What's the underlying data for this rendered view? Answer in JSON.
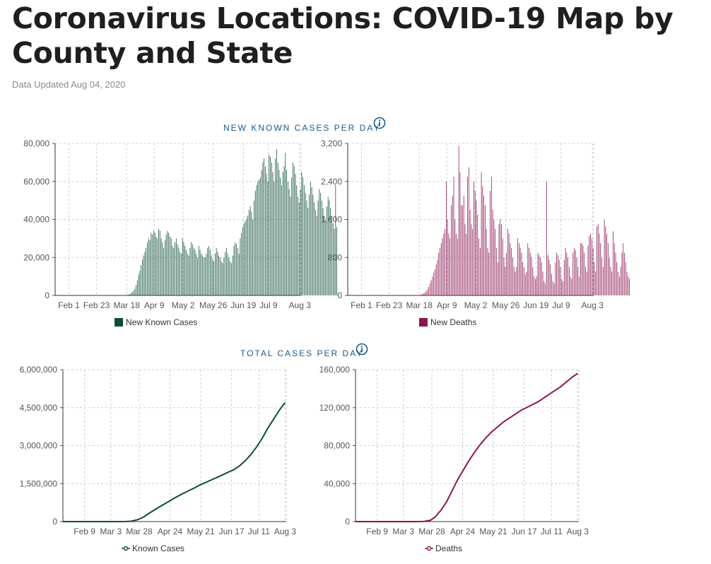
{
  "page": {
    "title": "Coronavirus Locations: COVID-19 Map by County and State",
    "updated": "Data Updated Aug 04, 2020"
  },
  "sections": {
    "new_title": "NEW KNOWN CASES PER DAY",
    "total_title": "TOTAL CASES PER DAY"
  },
  "colors": {
    "cases": "#0d4d3a",
    "deaths": "#8a1552",
    "title_blue": "#1a5a8c",
    "grid": "#cfcfcf"
  },
  "chart_data": [
    {
      "id": "new-cases",
      "type": "bar",
      "title": "NEW KNOWN CASES PER DAY",
      "legend": "New Known Cases",
      "color": "#0d4d3a",
      "x_start": "Jan 21",
      "x_end": "Aug 4",
      "xlim_days": [
        0,
        196
      ],
      "ylim": [
        0,
        80000
      ],
      "y_ticks": [
        0,
        20000,
        40000,
        60000,
        80000
      ],
      "y_tick_labels": [
        "0",
        "20,000",
        "40,000",
        "60,000",
        "80,000"
      ],
      "x_ticks": [
        {
          "label": "Feb 1",
          "day": 11
        },
        {
          "label": "Feb 23",
          "day": 33
        },
        {
          "label": "Mar 18",
          "day": 57
        },
        {
          "label": "Apr 9",
          "day": 79
        },
        {
          "label": "May 2",
          "day": 102
        },
        {
          "label": "May 26",
          "day": 126
        },
        {
          "label": "Jun 19",
          "day": 150
        },
        {
          "label": "Jul 9",
          "day": 170
        },
        {
          "label": "Aug 3",
          "day": 195
        }
      ],
      "daily_start_day": 39,
      "daily_values": [
        0,
        0,
        0,
        0,
        0,
        0,
        0,
        0,
        0,
        0,
        0,
        0,
        0,
        0,
        0,
        0,
        100,
        150,
        300,
        500,
        700,
        1200,
        1800,
        2500,
        3500,
        5500,
        8000,
        11000,
        13000,
        16000,
        19000,
        21000,
        23000,
        25000,
        28000,
        30000,
        29000,
        33000,
        32000,
        34000,
        33000,
        31000,
        30000,
        35000,
        34000,
        30000,
        28000,
        25000,
        29000,
        32000,
        34000,
        33000,
        31000,
        30000,
        26000,
        25000,
        28000,
        30000,
        27000,
        25000,
        23000,
        22000,
        30000,
        28000,
        26000,
        24000,
        22000,
        21000,
        25000,
        28000,
        27000,
        25000,
        24000,
        22000,
        20000,
        26000,
        24000,
        22000,
        21000,
        20000,
        20000,
        22000,
        25000,
        26000,
        24000,
        21000,
        19000,
        18000,
        22000,
        25000,
        23000,
        21000,
        20000,
        18000,
        17000,
        20000,
        23000,
        25000,
        22000,
        20000,
        18000,
        17000,
        21000,
        26000,
        28000,
        27000,
        25000,
        22000,
        30000,
        33000,
        36000,
        38000,
        39000,
        40000,
        42000,
        45000,
        47000,
        44000,
        40000,
        50000,
        55000,
        58000,
        60000,
        61000,
        62000,
        66000,
        70000,
        72000,
        68000,
        64000,
        60000,
        74000,
        73000,
        70000,
        65000,
        60000,
        72000,
        77000,
        70000,
        66000,
        62000,
        58000,
        65000,
        68000,
        75000,
        66000,
        60000,
        56000,
        52000,
        62000,
        70000,
        68000,
        64000,
        58000,
        52000,
        49000,
        56000,
        65000,
        62000,
        58000,
        54000,
        50000,
        46000,
        53000,
        60000,
        57000,
        53000,
        49000,
        45000,
        42000,
        50000,
        56000,
        54000,
        50000,
        46000,
        42000,
        40000,
        47000,
        52000,
        50000,
        46000,
        42000,
        38000,
        35000,
        58000,
        36000
      ]
    },
    {
      "id": "new-deaths",
      "type": "bar",
      "title": "NEW KNOWN CASES PER DAY",
      "legend": "New Deaths",
      "color": "#8a1552",
      "x_start": "Jan 21",
      "x_end": "Aug 4",
      "xlim_days": [
        0,
        196
      ],
      "ylim": [
        0,
        3200
      ],
      "y_ticks": [
        0,
        800,
        1600,
        2400,
        3200
      ],
      "y_tick_labels": [
        "0",
        "800",
        "1,600",
        "2,400",
        "3,200"
      ],
      "x_ticks": [
        {
          "label": "Feb 1",
          "day": 11
        },
        {
          "label": "Feb 23",
          "day": 33
        },
        {
          "label": "Mar 18",
          "day": 57
        },
        {
          "label": "Apr 9",
          "day": 79
        },
        {
          "label": "May 2",
          "day": 102
        },
        {
          "label": "May 26",
          "day": 126
        },
        {
          "label": "Jun 19",
          "day": 150
        },
        {
          "label": "Jul 9",
          "day": 170
        },
        {
          "label": "Aug 3",
          "day": 195
        }
      ],
      "daily_start_day": 39,
      "daily_values": [
        0,
        0,
        0,
        0,
        0,
        0,
        0,
        0,
        0,
        0,
        0,
        0,
        0,
        0,
        0,
        0,
        5,
        8,
        12,
        20,
        30,
        45,
        60,
        90,
        130,
        180,
        250,
        320,
        400,
        480,
        550,
        650,
        750,
        900,
        1000,
        1100,
        1200,
        1300,
        1400,
        2400,
        1600,
        1300,
        1200,
        1900,
        2100,
        2500,
        1600,
        1300,
        1200,
        3150,
        2600,
        1900,
        1900,
        2100,
        1500,
        1300,
        2500,
        2700,
        1800,
        1500,
        1400,
        2400,
        2200,
        2000,
        1700,
        1200,
        1000,
        2600,
        2300,
        2100,
        1900,
        1400,
        1000,
        900,
        2200,
        2500,
        1800,
        1600,
        1400,
        1000,
        700,
        1500,
        1600,
        1500,
        1200,
        800,
        600,
        900,
        1400,
        1300,
        1100,
        1000,
        800,
        600,
        500,
        600,
        1200,
        1100,
        1000,
        900,
        700,
        600,
        450,
        500,
        1100,
        1000,
        900,
        800,
        600,
        400,
        350,
        400,
        900,
        850,
        800,
        700,
        500,
        300,
        250,
        2400,
        850,
        750,
        650,
        450,
        300,
        250,
        700,
        900,
        850,
        750,
        600,
        350,
        300,
        750,
        1000,
        900,
        800,
        600,
        400,
        350,
        900,
        1000,
        950,
        800,
        600,
        400,
        1100,
        1100,
        1050,
        900,
        600,
        500,
        1050,
        1250,
        1300,
        1200,
        1000,
        700,
        500,
        1450,
        1500,
        1300,
        1100,
        800,
        600,
        1600,
        1450,
        1300,
        1100,
        800,
        600,
        500,
        1350,
        1100,
        900,
        700,
        500,
        400,
        600,
        900,
        1100,
        900,
        700,
        500,
        400,
        350
      ]
    },
    {
      "id": "total-cases",
      "type": "line",
      "title": "TOTAL CASES PER DAY",
      "legend": "Known Cases",
      "color": "#0d4d3a",
      "x_start": "Jan 21",
      "x_end": "Aug 4",
      "xlim_days": [
        0,
        196
      ],
      "ylim": [
        0,
        6000000
      ],
      "y_ticks": [
        0,
        1500000,
        3000000,
        4500000,
        6000000
      ],
      "y_tick_labels": [
        "0",
        "1,500,000",
        "3,000,000",
        "4,500,000",
        "6,000,000"
      ],
      "x_ticks": [
        {
          "label": "Feb 9",
          "day": 19
        },
        {
          "label": "Mar 3",
          "day": 42
        },
        {
          "label": "Mar 28",
          "day": 67
        },
        {
          "label": "Apr 24",
          "day": 94
        },
        {
          "label": "May 21",
          "day": 121
        },
        {
          "label": "Jun 17",
          "day": 148
        },
        {
          "label": "Jul 11",
          "day": 172
        },
        {
          "label": "Aug 3",
          "day": 195
        }
      ],
      "x": [
        0,
        40,
        55,
        60,
        66,
        70,
        75,
        80,
        85,
        90,
        95,
        100,
        105,
        110,
        115,
        120,
        125,
        130,
        135,
        140,
        145,
        150,
        155,
        160,
        165,
        170,
        175,
        180,
        185,
        190,
        195
      ],
      "values": [
        0,
        0,
        4000,
        15000,
        80000,
        160000,
        310000,
        450000,
        590000,
        720000,
        850000,
        980000,
        1100000,
        1210000,
        1320000,
        1440000,
        1540000,
        1640000,
        1740000,
        1840000,
        1950000,
        2050000,
        2200000,
        2400000,
        2650000,
        2950000,
        3300000,
        3700000,
        4050000,
        4400000,
        4700000
      ]
    },
    {
      "id": "total-deaths",
      "type": "line",
      "title": "TOTAL CASES PER DAY",
      "legend": "Deaths",
      "color": "#8a1552",
      "x_start": "Jan 21",
      "x_end": "Aug 4",
      "xlim_days": [
        0,
        196
      ],
      "ylim": [
        0,
        160000
      ],
      "y_ticks": [
        0,
        40000,
        80000,
        120000,
        160000
      ],
      "y_tick_labels": [
        "0",
        "40,000",
        "80,000",
        "120,000",
        "160,000"
      ],
      "x_ticks": [
        {
          "label": "Feb 9",
          "day": 19
        },
        {
          "label": "Mar 3",
          "day": 42
        },
        {
          "label": "Mar 28",
          "day": 67
        },
        {
          "label": "Apr 24",
          "day": 94
        },
        {
          "label": "May 21",
          "day": 121
        },
        {
          "label": "Jun 17",
          "day": 148
        },
        {
          "label": "Jul 11",
          "day": 172
        },
        {
          "label": "Aug 3",
          "day": 195
        }
      ],
      "x": [
        0,
        55,
        60,
        66,
        70,
        75,
        80,
        85,
        90,
        95,
        100,
        105,
        110,
        115,
        120,
        125,
        130,
        135,
        140,
        145,
        150,
        155,
        160,
        165,
        170,
        175,
        180,
        185,
        190,
        195
      ],
      "values": [
        0,
        0,
        200,
        1500,
        5000,
        12000,
        21000,
        33000,
        45000,
        55000,
        65000,
        74000,
        82000,
        89000,
        95000,
        100000,
        105000,
        109000,
        113000,
        117000,
        120000,
        123000,
        126000,
        130000,
        134000,
        138000,
        142000,
        147000,
        152000,
        156000
      ]
    }
  ]
}
